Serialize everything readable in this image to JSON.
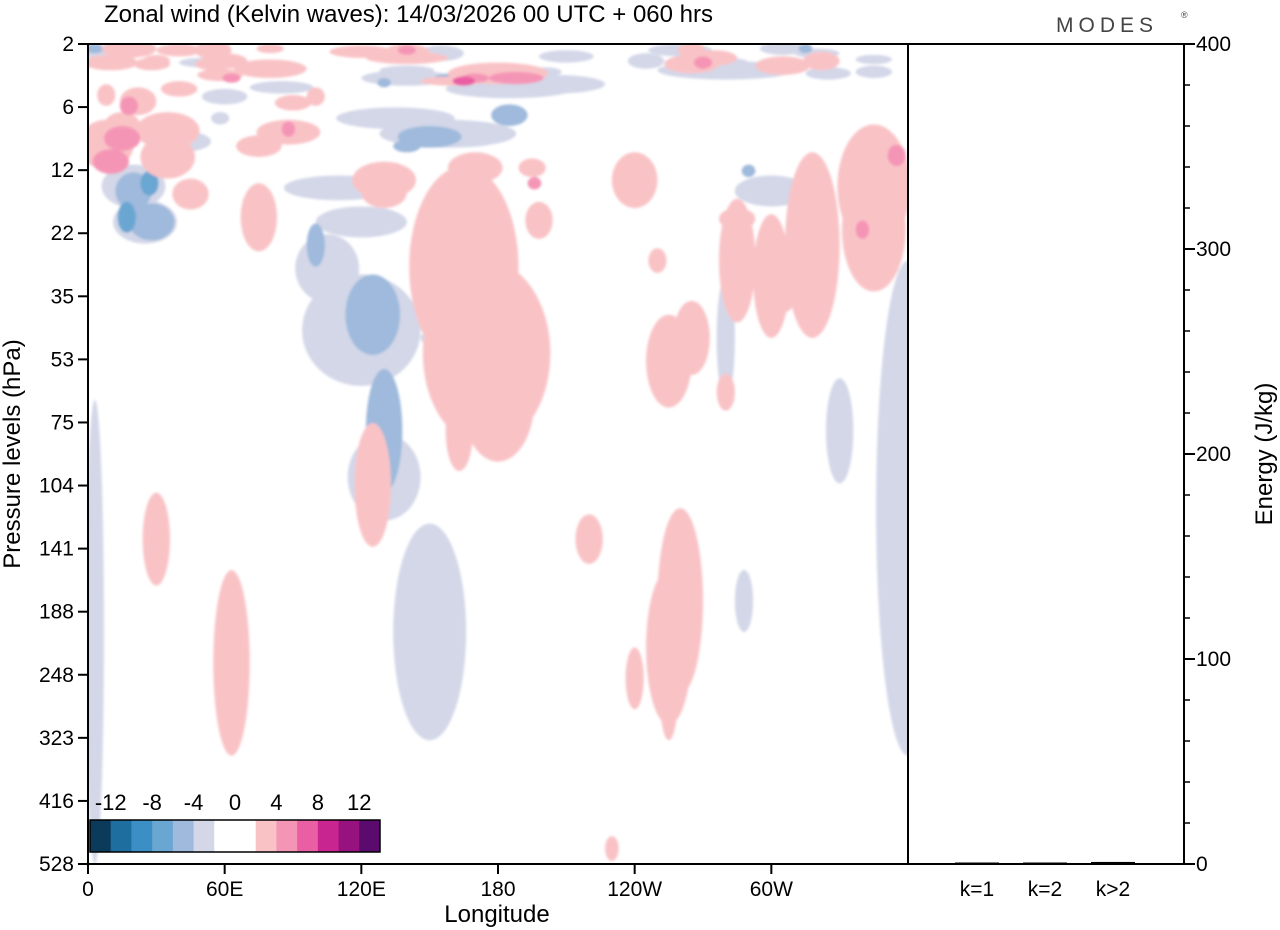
{
  "chart_data": {
    "type": "heatmap",
    "title": "Zonal wind (Kelvin waves):  14/03/2026  00 UTC  + 060 hrs",
    "brand": "MODES",
    "brand_mark": "®",
    "xlabel": "Longitude",
    "ylabel": "Pressure levels (hPa)",
    "x_ticks": [
      "0",
      "60E",
      "120E",
      "180",
      "120W",
      "60W"
    ],
    "x_tick_values": [
      0,
      60,
      120,
      180,
      240,
      300
    ],
    "xlim": [
      0,
      360
    ],
    "y_ticks": [
      "2",
      "6",
      "12",
      "22",
      "35",
      "53",
      "75",
      "104",
      "141",
      "188",
      "248",
      "323",
      "416",
      "528"
    ],
    "right_panel": {
      "ylabel": "Energy (J/kg)",
      "ylim": [
        0,
        400
      ],
      "y_ticks": [
        "0",
        "100",
        "200",
        "300",
        "400"
      ],
      "y_tick_values": [
        0,
        100,
        200,
        300,
        400
      ],
      "categories": [
        "k=1",
        "k=2",
        "k>2"
      ],
      "values": [
        0.5,
        0.5,
        1
      ]
    },
    "colorbar": {
      "labels": [
        "-12",
        "-8",
        "-4",
        "0",
        "4",
        "8",
        "12"
      ],
      "colors": [
        "#0c3a5a",
        "#1e6fa0",
        "#3b8fc4",
        "#6aa6d2",
        "#9fbadc",
        "#d3d7e8",
        "#ffffff",
        "#ffffff",
        "#f9c3c6",
        "#f595b6",
        "#ea5fa3",
        "#c92590",
        "#97127f",
        "#5b0a6e"
      ]
    },
    "field": [
      {
        "level": "neg1",
        "color": "#d3d7e8",
        "blobs": [
          [
            3,
            5,
            6,
            4
          ],
          [
            155,
            6,
            10,
            5
          ],
          [
            210,
            8,
            12,
            4
          ],
          [
            260,
            4,
            14,
            4
          ],
          [
            305,
            3,
            10,
            4
          ],
          [
            320,
            6,
            10,
            3
          ],
          [
            50,
            12,
            10,
            3
          ],
          [
            245,
            11,
            8,
            5
          ],
          [
            75,
            14,
            14,
            3
          ],
          [
            280,
            12,
            10,
            3
          ],
          [
            345,
            10,
            8,
            3
          ],
          [
            280,
            17,
            30,
            6
          ],
          [
            140,
            17,
            12,
            3
          ],
          [
            200,
            18,
            8,
            3
          ],
          [
            325,
            19,
            10,
            4
          ],
          [
            345,
            18,
            8,
            4
          ],
          [
            140,
            22,
            20,
            5
          ],
          [
            85,
            28,
            14,
            4
          ],
          [
            205,
            26,
            22,
            6
          ],
          [
            185,
            29,
            28,
            6
          ],
          [
            60,
            34,
            10,
            5
          ],
          [
            58,
            48,
            4,
            4
          ],
          [
            135,
            48,
            26,
            7
          ],
          [
            158,
            58,
            30,
            9
          ],
          [
            40,
            63,
            14,
            7
          ],
          [
            20,
            92,
            14,
            14
          ],
          [
            25,
            115,
            14,
            14
          ],
          [
            110,
            93,
            24,
            8
          ],
          [
            120,
            115,
            20,
            10
          ],
          [
            300,
            95,
            16,
            10
          ],
          [
            345,
            92,
            10,
            8
          ],
          [
            105,
            145,
            14,
            22
          ],
          [
            120,
            185,
            26,
            36
          ],
          [
            150,
            190,
            4,
            4
          ],
          [
            130,
            280,
            16,
            28
          ],
          [
            150,
            380,
            16,
            70
          ],
          [
            280,
            190,
            4,
            40
          ],
          [
            360,
            300,
            14,
            160
          ],
          [
            288,
            360,
            4,
            20
          ],
          [
            330,
            250,
            6,
            34
          ],
          [
            3,
            380,
            4,
            150
          ]
        ]
      },
      {
        "level": "neg2",
        "color": "#9fbadc",
        "blobs": [
          [
            3,
            3,
            4,
            3
          ],
          [
            315,
            3,
            3,
            3
          ],
          [
            270,
            7,
            2,
            3
          ],
          [
            160,
            22,
            8,
            3
          ],
          [
            170,
            22,
            4,
            3
          ],
          [
            130,
            25,
            3,
            3
          ],
          [
            185,
            46,
            8,
            7
          ],
          [
            150,
            60,
            14,
            7
          ],
          [
            140,
            66,
            6,
            4
          ],
          [
            20,
            95,
            8,
            12
          ],
          [
            28,
            115,
            10,
            12
          ],
          [
            100,
            130,
            4,
            14
          ],
          [
            125,
            175,
            12,
            26
          ],
          [
            130,
            250,
            8,
            40
          ],
          [
            290,
            82,
            3,
            4
          ]
        ]
      },
      {
        "level": "neg3",
        "color": "#6aa6d2",
        "blobs": [
          [
            27,
            90,
            4,
            8
          ],
          [
            17,
            112,
            4,
            10
          ]
        ]
      },
      {
        "level": "pos1",
        "color": "#f9c3c6",
        "blobs": [
          [
            18,
            3,
            12,
            6
          ],
          [
            40,
            4,
            10,
            4
          ],
          [
            55,
            4,
            8,
            6
          ],
          [
            80,
            3,
            6,
            3
          ],
          [
            120,
            5,
            14,
            4
          ],
          [
            140,
            5,
            10,
            5
          ],
          [
            140,
            9,
            18,
            4
          ],
          [
            30,
            11,
            6,
            4
          ],
          [
            60,
            11,
            10,
            5
          ],
          [
            265,
            4,
            6,
            5
          ],
          [
            275,
            9,
            10,
            5
          ],
          [
            10,
            12,
            12,
            5
          ],
          [
            28,
            13,
            8,
            4
          ],
          [
            55,
            13,
            8,
            4
          ],
          [
            265,
            13,
            12,
            6
          ],
          [
            322,
            11,
            8,
            6
          ],
          [
            305,
            14,
            12,
            6
          ],
          [
            80,
            16,
            16,
            6
          ],
          [
            58,
            20,
            10,
            4
          ],
          [
            180,
            19,
            22,
            7
          ],
          [
            160,
            24,
            14,
            3
          ],
          [
            40,
            29,
            8,
            5
          ],
          [
            8,
            33,
            4,
            7
          ],
          [
            22,
            37,
            8,
            9
          ],
          [
            15,
            53,
            8,
            9
          ],
          [
            35,
            56,
            14,
            12
          ],
          [
            88,
            57,
            14,
            8
          ],
          [
            75,
            66,
            10,
            7
          ],
          [
            100,
            34,
            4,
            6
          ],
          [
            90,
            38,
            8,
            5
          ],
          [
            8,
            65,
            12,
            16
          ],
          [
            35,
            73,
            12,
            14
          ],
          [
            45,
            97,
            8,
            10
          ],
          [
            75,
            112,
            8,
            22
          ],
          [
            198,
            114,
            6,
            12
          ],
          [
            285,
            113,
            8,
            7
          ],
          [
            240,
            88,
            10,
            18
          ],
          [
            170,
            80,
            12,
            10
          ],
          [
            195,
            80,
            6,
            6
          ],
          [
            130,
            88,
            14,
            12
          ],
          [
            130,
            96,
            10,
            10
          ],
          [
            250,
            140,
            4,
            8
          ],
          [
            285,
            140,
            8,
            40
          ],
          [
            300,
            150,
            8,
            40
          ],
          [
            318,
            130,
            12,
            60
          ],
          [
            345,
            92,
            16,
            40
          ],
          [
            345,
            120,
            14,
            40
          ],
          [
            125,
            285,
            8,
            40
          ],
          [
            165,
            144,
            24,
            65
          ],
          [
            175,
            200,
            28,
            60
          ],
          [
            180,
            230,
            16,
            40
          ],
          [
            163,
            250,
            6,
            26
          ],
          [
            255,
            205,
            10,
            30
          ],
          [
            265,
            190,
            8,
            24
          ],
          [
            220,
            320,
            6,
            16
          ],
          [
            260,
            360,
            10,
            60
          ],
          [
            255,
            390,
            10,
            50
          ],
          [
            280,
            225,
            4,
            12
          ],
          [
            305,
            160,
            6,
            14
          ],
          [
            30,
            320,
            6,
            30
          ],
          [
            63,
            400,
            8,
            60
          ],
          [
            230,
            520,
            3,
            8
          ],
          [
            240,
            410,
            4,
            20
          ],
          [
            255,
            420,
            4,
            30
          ]
        ]
      },
      {
        "level": "pos2",
        "color": "#f595b6",
        "blobs": [
          [
            188,
            22,
            12,
            4
          ],
          [
            170,
            22,
            6,
            3
          ],
          [
            63,
            22,
            4,
            3
          ],
          [
            18,
            40,
            4,
            6
          ],
          [
            15,
            61,
            8,
            8
          ],
          [
            10,
            76,
            8,
            8
          ],
          [
            355,
            72,
            4,
            7
          ],
          [
            196,
            90,
            3,
            4
          ],
          [
            270,
            12,
            4,
            4
          ],
          [
            88,
            55,
            3,
            5
          ],
          [
            140,
            4,
            4,
            3
          ],
          [
            340,
            120,
            3,
            6
          ]
        ]
      },
      {
        "level": "pos3",
        "color": "#ea5fa3",
        "blobs": [
          [
            165,
            24,
            5,
            3
          ]
        ]
      }
    ]
  }
}
